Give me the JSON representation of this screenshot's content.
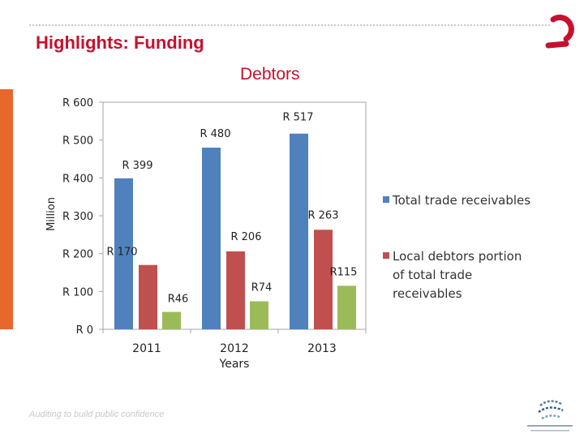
{
  "slide": {
    "title": "Highlights: Funding",
    "footer_tagline": "Auditing to build public confidence"
  },
  "colors": {
    "brand_red": "#c8102e",
    "accent_orange": "#e8672c",
    "series_blue": "#4f81bd",
    "series_red": "#c0504d",
    "series_green": "#9bbb59"
  },
  "icons": {
    "brand_swirl": "red-swirl-logo-icon",
    "org_logo": "auditor-general-logo-icon"
  },
  "chart_data": {
    "type": "bar",
    "title": "Debtors",
    "xlabel": "Years",
    "ylabel": "Million",
    "ylim": [
      0,
      600
    ],
    "yticks": [
      0,
      100,
      200,
      300,
      400,
      500,
      600
    ],
    "ytick_labels": [
      "R 0",
      "R 100",
      "R 200",
      "R 300",
      "R 400",
      "R 500",
      "R 600"
    ],
    "categories": [
      "2011",
      "2012",
      "2013"
    ],
    "series": [
      {
        "name": "Total trade receivables",
        "color": "#4f81bd",
        "values": [
          399,
          480,
          517
        ],
        "labels": [
          "R 399",
          "R 480",
          "R 517"
        ]
      },
      {
        "name": "Local debtors portion of total trade receivables",
        "legend_lines": [
          "Local debtors portion",
          "of total trade",
          "receivables"
        ],
        "color": "#c0504d",
        "values": [
          170,
          206,
          263
        ],
        "labels": [
          "R 170",
          "R 206",
          "R 263"
        ]
      },
      {
        "name": "",
        "color": "#9bbb59",
        "values": [
          46,
          74,
          115
        ],
        "labels": [
          "R46",
          "R74",
          "R115"
        ]
      }
    ],
    "legend_position": "right",
    "grid": false
  }
}
